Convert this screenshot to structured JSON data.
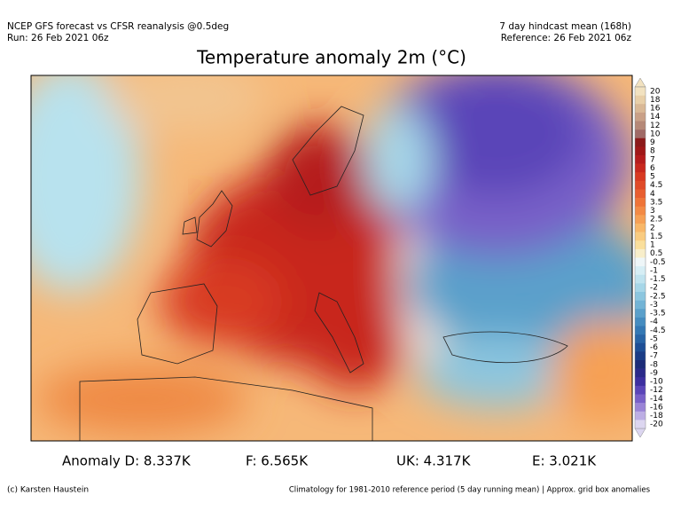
{
  "header": {
    "left": [
      "NCEP GFS forecast vs CFSR reanalysis @0.5deg",
      "Run: 26 Feb 2021 06z"
    ],
    "right": [
      "7 day hindcast mean (168h)",
      "Reference: 26 Feb 2021 06z"
    ]
  },
  "title": "Temperature anomaly 2m (°C)",
  "colorbar": {
    "labels": [
      20,
      18,
      16,
      14,
      12,
      10,
      9,
      8,
      7,
      6,
      5,
      4.5,
      4,
      3.5,
      3,
      2.5,
      2,
      1.5,
      1,
      0.5,
      -0.5,
      -1,
      -1.5,
      -2,
      -2.5,
      -3,
      -3.5,
      -4,
      -4.5,
      -5,
      -6,
      -7,
      -8,
      -9,
      -10,
      -12,
      -14,
      -16,
      -18,
      -20
    ],
    "colors": [
      "#f2e2c0",
      "#e8cfa8",
      "#d9b896",
      "#c9a087",
      "#b58877",
      "#a06a66",
      "#8c1a1a",
      "#a01818",
      "#b51c1c",
      "#c8281e",
      "#d83a22",
      "#e04a28",
      "#e85e30",
      "#ef7438",
      "#f38a45",
      "#f6a055",
      "#f8b768",
      "#f9cb80",
      "#fadf9c",
      "#f8eeca",
      "#eef6f8",
      "#d6eef5",
      "#bfe3ef",
      "#a6d6e8",
      "#8cc6df",
      "#72b4d6",
      "#5aa0cb",
      "#458cc0",
      "#3478b4",
      "#2864a6",
      "#1e4f96",
      "#1a3c86",
      "#1c2c78",
      "#2a2a8a",
      "#3c2fa0",
      "#5a45b8",
      "#7860c8",
      "#9a84d6",
      "#bcaee4",
      "#dcd6f0"
    ]
  },
  "stats": [
    "Anomaly D: 8.337K",
    "F: 6.565K",
    "UK: 4.317K",
    "E: 3.021K"
  ],
  "footer": {
    "left": "(c) Karsten Haustein",
    "right": "Climatology for 1981-2010 reference period (5 day running mean) | Approx. grid box anomalies"
  }
}
